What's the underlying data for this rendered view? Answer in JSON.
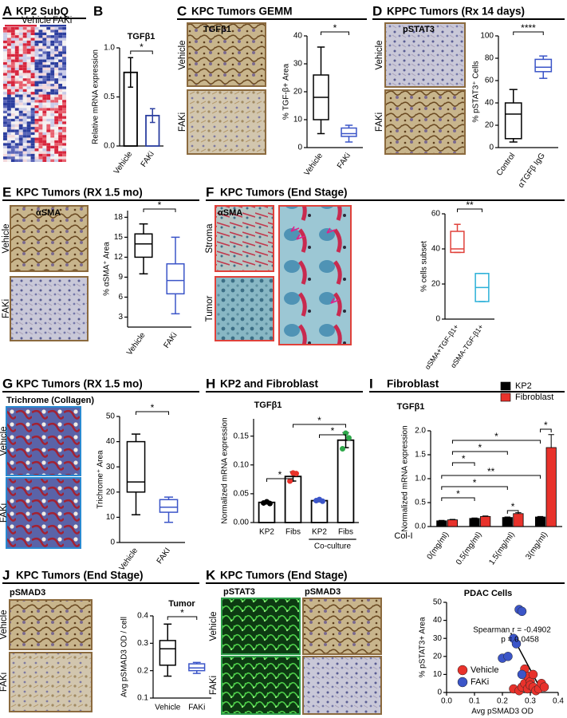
{
  "panels": [
    {
      "letter": "A",
      "title": "KP2 SubQ",
      "rows": [
        "Vehicle",
        "FAKi"
      ]
    },
    {
      "letter": "B"
    },
    {
      "letter": "C",
      "title": "KPC Tumors GEMM",
      "stains": [
        "TGFβ1"
      ],
      "rows": [
        "Vehicle",
        "FAKi"
      ]
    },
    {
      "letter": "D",
      "title": "KPPC Tumors (Rx 14 days)",
      "stains": [
        "pSTAT3"
      ],
      "rows": [
        "Vehicle",
        "FAKi"
      ]
    },
    {
      "letter": "E",
      "title": "KPC Tumors (RX 1.5 mo)",
      "stains": [
        "αSMA"
      ],
      "rows": [
        "Vehicle",
        "FAKi"
      ]
    },
    {
      "letter": "F",
      "title": "KPC Tumors (End Stage)",
      "stains": [
        "αSMA"
      ],
      "rows": [
        "Stroma",
        "Tumor"
      ]
    },
    {
      "letter": "G",
      "title": "KPC Tumors (RX 1.5 mo)",
      "stains": [
        "Trichrome (Collagen)"
      ],
      "rows": [
        "Vehicle",
        "FAKi"
      ]
    },
    {
      "letter": "H",
      "title": "KP2 and Fibroblast"
    },
    {
      "letter": "I",
      "title": "Fibroblast"
    },
    {
      "letter": "J",
      "title": "KPC Tumors (End Stage)",
      "stains": [
        "pSMAD3"
      ],
      "rows": [
        "Vehicle",
        "FAKi"
      ]
    },
    {
      "letter": "K",
      "title": "KPC Tumors (End Stage)",
      "stains": [
        "pSTAT3",
        "pSMAD3"
      ],
      "rows": [
        "Vehicle",
        "FAKi"
      ]
    }
  ],
  "chart_data": [
    {
      "type": "bar",
      "title": "TGFβ1",
      "ylabel": "Relative mRNA expression",
      "categories": [
        "Vehicle",
        "FAKi"
      ],
      "values": [
        0.75,
        0.31
      ],
      "errors": [
        0.15,
        0.07
      ],
      "colors": [
        "#000000",
        "#2b3fa0"
      ],
      "ylim": [
        0,
        1.0
      ],
      "yticks": [
        {
          "value": 0,
          "label": "0.0"
        },
        0.5,
        {
          "value": 1,
          "label": "1.0"
        }
      ],
      "significance": [
        {
          "pair": [
            0,
            1
          ],
          "label": "*"
        }
      ]
    },
    {
      "type": "box",
      "ylabel": "% TGF-β+ Area",
      "categories": [
        "Vehicle",
        "FAKi"
      ],
      "colors": [
        "#000000",
        "#3b55c8"
      ],
      "boxes": [
        {
          "min": 5,
          "q1": 10,
          "median": 18,
          "q3": 26,
          "max": 36
        },
        {
          "min": 2,
          "q1": 4,
          "median": 5,
          "q3": 7,
          "max": 8
        }
      ],
      "ylim": [
        0,
        40
      ],
      "yticks": [
        0,
        10,
        20,
        30,
        40
      ],
      "significance": [
        {
          "pair": [
            0,
            1
          ],
          "label": "*"
        }
      ]
    },
    {
      "type": "box",
      "ylabel": "% pSTAT3⁺ Cells",
      "categories": [
        "Control",
        "αTGFβ IgG"
      ],
      "colors": [
        "#000000",
        "#3b55c8"
      ],
      "boxes": [
        {
          "min": 5,
          "q1": 8,
          "median": 30,
          "q3": 40,
          "max": 52
        },
        {
          "min": 62,
          "q1": 68,
          "median": 72,
          "q3": 79,
          "max": 82
        }
      ],
      "ylim": [
        0,
        100
      ],
      "yticks": [
        0,
        20,
        40,
        60,
        80,
        100
      ],
      "significance": [
        {
          "pair": [
            0,
            1
          ],
          "label": "****"
        }
      ]
    },
    {
      "type": "box",
      "ylabel": "% αSMA⁺ Area",
      "categories": [
        "Vehicle",
        "FAKi"
      ],
      "colors": [
        "#000000",
        "#3b55c8"
      ],
      "boxes": [
        {
          "min": 9.5,
          "q1": 12,
          "median": 14,
          "q3": 15.5,
          "max": 17
        },
        {
          "min": 3.5,
          "q1": 6.5,
          "median": 8.5,
          "q3": 11,
          "max": 15
        }
      ],
      "ylim": [
        1.5,
        19
      ],
      "yticks": [
        3,
        6,
        9,
        12,
        15,
        18
      ],
      "significance": [
        {
          "pair": [
            0,
            1
          ],
          "label": "*"
        }
      ]
    },
    {
      "type": "box",
      "ylabel": "% cells subset",
      "categories": [
        "αSMA+TGF-β1+",
        "αSMA-TGF-β1+"
      ],
      "colors": [
        "#e0413a",
        "#2bb0d8"
      ],
      "boxes": [
        {
          "min": 38,
          "q1": 38,
          "median": 40,
          "q3": 50,
          "max": 54
        },
        {
          "min": 10,
          "q1": 10,
          "median": 18,
          "q3": 26,
          "max": 26
        }
      ],
      "ylim": [
        0,
        60
      ],
      "yticks": [
        0,
        20,
        40,
        60
      ],
      "significance": [
        {
          "pair": [
            0,
            1
          ],
          "label": "**"
        }
      ]
    },
    {
      "type": "box",
      "ylabel": "Trichrome⁺ Area",
      "categories": [
        "Vehicle",
        "FAKI"
      ],
      "colors": [
        "#000000",
        "#3b55c8"
      ],
      "boxes": [
        {
          "min": 11,
          "q1": 20,
          "median": 24,
          "q3": 40,
          "max": 43
        },
        {
          "min": 8,
          "q1": 12,
          "median": 14,
          "q3": 17,
          "max": 18
        }
      ],
      "ylim": [
        0,
        50
      ],
      "yticks": [
        0,
        10,
        20,
        30,
        40,
        50
      ],
      "significance": [
        {
          "pair": [
            0,
            1
          ],
          "label": "*"
        }
      ]
    },
    {
      "type": "bar",
      "title": "TGFβ1",
      "ylabel": "Normalized mRNA expression",
      "categories": [
        "KP2",
        "Fibs",
        "KP2",
        "Fibs"
      ],
      "group_label": "Co-culture",
      "values": [
        0.035,
        0.08,
        0.038,
        0.143
      ],
      "errors": [
        0.002,
        0.008,
        0.002,
        0.013
      ],
      "colors": [
        "#000000",
        "#000000",
        "#000000",
        "#000000"
      ],
      "points": [
        [
          0.034,
          0.036,
          0.033
        ],
        [
          0.072,
          0.086,
          0.085
        ],
        [
          0.038,
          0.04,
          0.037
        ],
        [
          0.128,
          0.155,
          0.147
        ]
      ],
      "point_colors": [
        "#000000",
        "#e8322b",
        "#3b55c8",
        "#2ea84a"
      ],
      "ylim": [
        0,
        0.18
      ],
      "yticks": [
        {
          "value": 0,
          "label": "0.00"
        },
        {
          "value": 0.05,
          "label": "0.05"
        },
        {
          "value": 0.1,
          "label": "0.10"
        },
        {
          "value": 0.15,
          "label": "0.15"
        }
      ],
      "significance": [
        {
          "pair": [
            0,
            1
          ],
          "label": "*"
        },
        {
          "pair": [
            2,
            3
          ],
          "label": "*"
        },
        {
          "pair": [
            1,
            3
          ],
          "label": "*"
        }
      ]
    },
    {
      "type": "grouped_bar",
      "title": "TGFβ1",
      "xlabel": "Col-I",
      "ylabel": "Normalized mRNA expression",
      "categories": [
        "0(mg/ml)",
        "0.5(mg/ml)",
        "1.5(mg/ml)",
        "3(mg/ml)"
      ],
      "series": [
        {
          "name": "KP2",
          "color": "#000000",
          "values": [
            0.12,
            0.17,
            0.19,
            0.2
          ],
          "errors": [
            0.01,
            0.01,
            0.01,
            0.01
          ]
        },
        {
          "name": "Fibroblast",
          "color": "#e8322b",
          "values": [
            0.14,
            0.21,
            0.27,
            1.65
          ],
          "errors": [
            0.01,
            0.01,
            0.02,
            0.27
          ]
        }
      ],
      "legend": "upper right",
      "ylim": [
        0,
        2.0
      ],
      "yticks": [
        {
          "value": 0,
          "label": "0.0"
        },
        0.5,
        {
          "value": 1,
          "label": "1.0"
        },
        1.5,
        {
          "value": 2,
          "label": "2.0"
        }
      ],
      "significance": [
        {
          "pair": [
            6,
            7
          ],
          "label": "*"
        },
        {
          "pair": [
            1,
            6
          ],
          "label": "*"
        },
        {
          "pair": [
            1,
            4
          ],
          "label": "*"
        },
        {
          "pair": [
            1,
            2
          ],
          "label": "*"
        },
        {
          "pair": [
            0,
            6
          ],
          "label": "**"
        },
        {
          "pair": [
            0,
            4
          ],
          "label": "*"
        },
        {
          "pair": [
            0,
            2
          ],
          "label": "*"
        },
        {
          "pair": [
            4,
            5
          ],
          "label": "*"
        }
      ]
    },
    {
      "type": "box",
      "title": "Tumor",
      "ylabel": "Avg pSMAD3 OD / cell",
      "categories": [
        "Vehicle",
        "FAKi"
      ],
      "colors": [
        "#000000",
        "#3b55c8"
      ],
      "boxes": [
        {
          "min": 0.18,
          "q1": 0.22,
          "median": 0.28,
          "q3": 0.31,
          "max": 0.37
        },
        {
          "min": 0.19,
          "q1": 0.2,
          "median": 0.21,
          "q3": 0.225,
          "max": 0.23
        }
      ],
      "ylim": [
        0.1,
        0.4
      ],
      "yticks": [
        0.1,
        0.2,
        0.3,
        0.4
      ],
      "significance": [
        {
          "pair": [
            0,
            1
          ],
          "label": "*"
        }
      ]
    },
    {
      "type": "scatter",
      "title": "PDAC Cells",
      "xlabel": "Avg pSMAD3 OD",
      "ylabel": "% pSTAT3+ Area",
      "series": [
        {
          "name": "Vehicle",
          "color": "#e8322b",
          "x": [
            0.24,
            0.26,
            0.27,
            0.28,
            0.28,
            0.29,
            0.29,
            0.3,
            0.3,
            0.31,
            0.31,
            0.32,
            0.33,
            0.34,
            0.35
          ],
          "y": [
            2,
            1,
            3,
            5,
            13,
            2,
            9,
            6,
            4,
            10,
            3,
            1,
            2,
            5,
            3
          ]
        },
        {
          "name": "FAKi",
          "color": "#3b55c8",
          "x": [
            0.2,
            0.22,
            0.24,
            0.25,
            0.26,
            0.27,
            0.27
          ],
          "y": [
            19,
            20,
            30,
            27,
            46,
            45,
            10
          ]
        }
      ],
      "fit": {
        "x": [
          0.23,
          0.34
        ],
        "y": [
          33,
          1
        ]
      },
      "annotations": [
        "Spearman r = -0.4902",
        "p = 0.0458"
      ],
      "legend": "lower left",
      "xlim": [
        0,
        0.4
      ],
      "xticks": [
        {
          "value": 0,
          "label": "0.0"
        },
        0.1,
        0.2,
        0.3,
        0.4
      ],
      "ylim": [
        0,
        50
      ],
      "yticks": [
        0,
        10,
        20,
        30,
        40,
        50
      ]
    }
  ]
}
